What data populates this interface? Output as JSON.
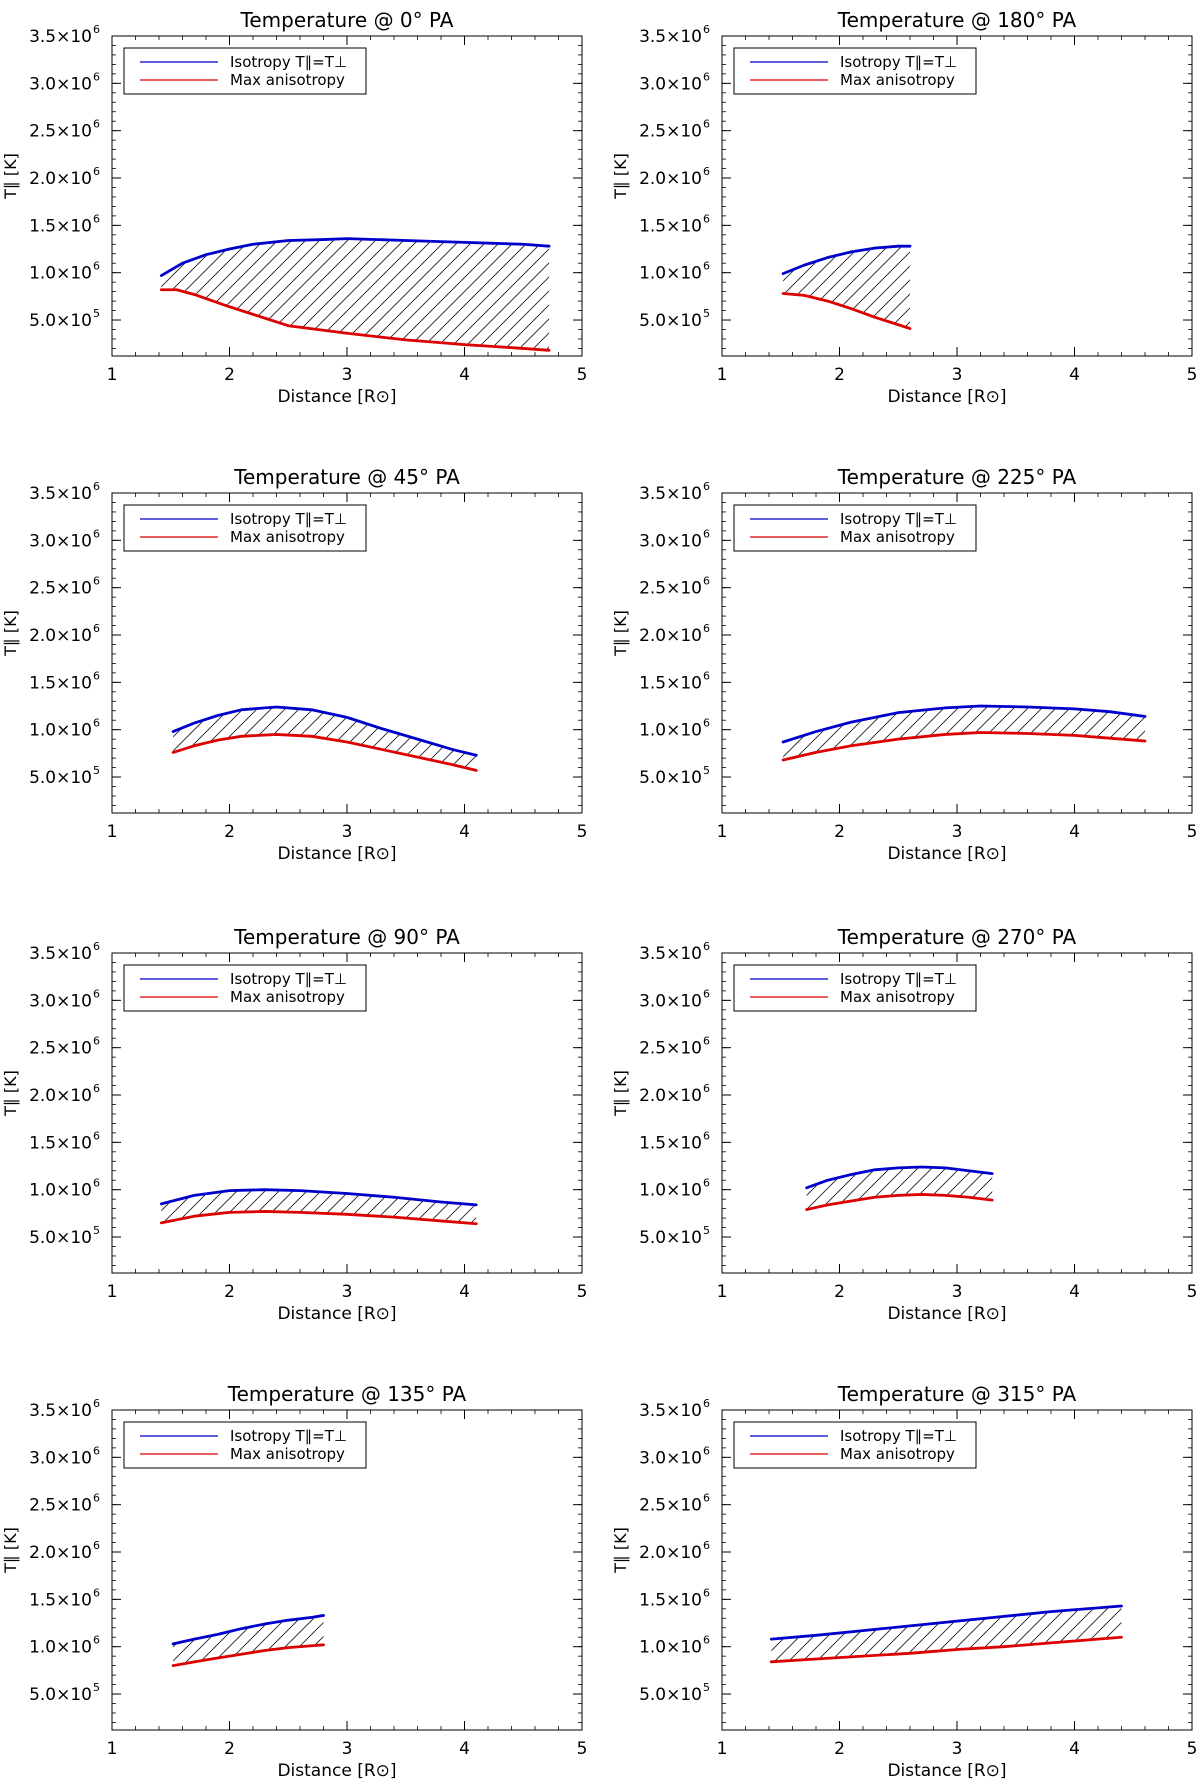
{
  "chart_data": [
    {
      "type": "area",
      "title": "Temperature @ 0° PA",
      "xlabel": "Distance [R⊙]",
      "ylabel": "T∥ [K]",
      "xlim": [
        1,
        5
      ],
      "ylim": [
        120000,
        3500000
      ],
      "xticks": [
        "1",
        "2",
        "3",
        "4",
        "5"
      ],
      "yticks": [
        {
          "value": 500000,
          "mant": "5.0",
          "exp": "5"
        },
        {
          "value": 1000000,
          "mant": "1.0",
          "exp": "6"
        },
        {
          "value": 1500000,
          "mant": "1.5",
          "exp": "6"
        },
        {
          "value": 2000000,
          "mant": "2.0",
          "exp": "6"
        },
        {
          "value": 2500000,
          "mant": "2.5",
          "exp": "6"
        },
        {
          "value": 3000000,
          "mant": "3.0",
          "exp": "6"
        },
        {
          "value": 3500000,
          "mant": "3.5",
          "exp": "6"
        }
      ],
      "legend": {
        "placement": "top-left",
        "entries": [
          "Isotropy T∥=T⊥",
          "Max anisotropy"
        ]
      },
      "series": [
        {
          "name": "Isotropy T∥=T⊥",
          "color": "#0000cc",
          "x": [
            1.42,
            1.6,
            1.8,
            2.0,
            2.2,
            2.5,
            2.8,
            3.0,
            3.5,
            4.0,
            4.5,
            4.72
          ],
          "y": [
            970000,
            1100000,
            1190000,
            1250000,
            1300000,
            1340000,
            1350000,
            1360000,
            1340000,
            1320000,
            1300000,
            1280000
          ]
        },
        {
          "name": "Max anisotropy",
          "color": "#dd0000",
          "x": [
            1.42,
            1.55,
            1.7,
            2.0,
            2.3,
            2.5,
            3.0,
            3.5,
            4.0,
            4.5,
            4.72
          ],
          "y": [
            820000,
            820000,
            770000,
            640000,
            520000,
            440000,
            360000,
            290000,
            240000,
            200000,
            180000
          ]
        }
      ]
    },
    {
      "type": "area",
      "title": "Temperature @ 180° PA",
      "xlabel": "Distance [R⊙]",
      "ylabel": "T∥ [K]",
      "xlim": [
        1,
        5
      ],
      "ylim": [
        120000,
        3500000
      ],
      "xticks": [
        "1",
        "2",
        "3",
        "4",
        "5"
      ],
      "yticks": [
        {
          "value": 500000,
          "mant": "5.0",
          "exp": "5"
        },
        {
          "value": 1000000,
          "mant": "1.0",
          "exp": "6"
        },
        {
          "value": 1500000,
          "mant": "1.5",
          "exp": "6"
        },
        {
          "value": 2000000,
          "mant": "2.0",
          "exp": "6"
        },
        {
          "value": 2500000,
          "mant": "2.5",
          "exp": "6"
        },
        {
          "value": 3000000,
          "mant": "3.0",
          "exp": "6"
        },
        {
          "value": 3500000,
          "mant": "3.5",
          "exp": "6"
        }
      ],
      "legend": {
        "placement": "top-left",
        "entries": [
          "Isotropy T∥=T⊥",
          "Max anisotropy"
        ]
      },
      "series": [
        {
          "name": "Isotropy T∥=T⊥",
          "color": "#0000cc",
          "x": [
            1.52,
            1.7,
            1.9,
            2.1,
            2.3,
            2.5,
            2.6
          ],
          "y": [
            990000,
            1080000,
            1160000,
            1220000,
            1260000,
            1280000,
            1280000
          ]
        },
        {
          "name": "Max anisotropy",
          "color": "#dd0000",
          "x": [
            1.52,
            1.7,
            1.9,
            2.1,
            2.3,
            2.5,
            2.6
          ],
          "y": [
            780000,
            760000,
            700000,
            620000,
            530000,
            450000,
            410000
          ]
        }
      ]
    },
    {
      "type": "area",
      "title": "Temperature @ 45° PA",
      "xlabel": "Distance [R⊙]",
      "ylabel": "T∥ [K]",
      "xlim": [
        1,
        5
      ],
      "ylim": [
        120000,
        3500000
      ],
      "xticks": [
        "1",
        "2",
        "3",
        "4",
        "5"
      ],
      "yticks": [
        {
          "value": 500000,
          "mant": "5.0",
          "exp": "5"
        },
        {
          "value": 1000000,
          "mant": "1.0",
          "exp": "6"
        },
        {
          "value": 1500000,
          "mant": "1.5",
          "exp": "6"
        },
        {
          "value": 2000000,
          "mant": "2.0",
          "exp": "6"
        },
        {
          "value": 2500000,
          "mant": "2.5",
          "exp": "6"
        },
        {
          "value": 3000000,
          "mant": "3.0",
          "exp": "6"
        },
        {
          "value": 3500000,
          "mant": "3.5",
          "exp": "6"
        }
      ],
      "legend": {
        "placement": "top-left",
        "entries": [
          "Isotropy T∥=T⊥",
          "Max anisotropy"
        ]
      },
      "series": [
        {
          "name": "Isotropy T∥=T⊥",
          "color": "#0000cc",
          "x": [
            1.52,
            1.7,
            1.9,
            2.1,
            2.4,
            2.7,
            3.0,
            3.3,
            3.6,
            3.9,
            4.1
          ],
          "y": [
            980000,
            1070000,
            1150000,
            1210000,
            1240000,
            1210000,
            1130000,
            1010000,
            900000,
            790000,
            730000
          ]
        },
        {
          "name": "Max anisotropy",
          "color": "#dd0000",
          "x": [
            1.52,
            1.7,
            1.9,
            2.1,
            2.4,
            2.7,
            3.0,
            3.3,
            3.6,
            3.9,
            4.1
          ],
          "y": [
            760000,
            830000,
            890000,
            930000,
            950000,
            930000,
            870000,
            790000,
            710000,
            630000,
            570000
          ]
        }
      ]
    },
    {
      "type": "area",
      "title": "Temperature @ 225° PA",
      "xlabel": "Distance [R⊙]",
      "ylabel": "T∥ [K]",
      "xlim": [
        1,
        5
      ],
      "ylim": [
        120000,
        3500000
      ],
      "xticks": [
        "1",
        "2",
        "3",
        "4",
        "5"
      ],
      "yticks": [
        {
          "value": 500000,
          "mant": "5.0",
          "exp": "5"
        },
        {
          "value": 1000000,
          "mant": "1.0",
          "exp": "6"
        },
        {
          "value": 1500000,
          "mant": "1.5",
          "exp": "6"
        },
        {
          "value": 2000000,
          "mant": "2.0",
          "exp": "6"
        },
        {
          "value": 2500000,
          "mant": "2.5",
          "exp": "6"
        },
        {
          "value": 3000000,
          "mant": "3.0",
          "exp": "6"
        },
        {
          "value": 3500000,
          "mant": "3.5",
          "exp": "6"
        }
      ],
      "legend": {
        "placement": "top-left",
        "entries": [
          "Isotropy T∥=T⊥",
          "Max anisotropy"
        ]
      },
      "series": [
        {
          "name": "Isotropy T∥=T⊥",
          "color": "#0000cc",
          "x": [
            1.52,
            1.8,
            2.1,
            2.5,
            2.9,
            3.2,
            3.6,
            4.0,
            4.3,
            4.6
          ],
          "y": [
            870000,
            980000,
            1080000,
            1180000,
            1230000,
            1250000,
            1240000,
            1220000,
            1190000,
            1140000
          ]
        },
        {
          "name": "Max anisotropy",
          "color": "#dd0000",
          "x": [
            1.52,
            1.8,
            2.1,
            2.5,
            2.9,
            3.2,
            3.6,
            4.0,
            4.3,
            4.6
          ],
          "y": [
            680000,
            760000,
            830000,
            900000,
            950000,
            970000,
            960000,
            940000,
            910000,
            880000
          ]
        }
      ]
    },
    {
      "type": "area",
      "title": "Temperature @ 90° PA",
      "xlabel": "Distance [R⊙]",
      "ylabel": "T∥ [K]",
      "xlim": [
        1,
        5
      ],
      "ylim": [
        120000,
        3500000
      ],
      "xticks": [
        "1",
        "2",
        "3",
        "4",
        "5"
      ],
      "yticks": [
        {
          "value": 500000,
          "mant": "5.0",
          "exp": "5"
        },
        {
          "value": 1000000,
          "mant": "1.0",
          "exp": "6"
        },
        {
          "value": 1500000,
          "mant": "1.5",
          "exp": "6"
        },
        {
          "value": 2000000,
          "mant": "2.0",
          "exp": "6"
        },
        {
          "value": 2500000,
          "mant": "2.5",
          "exp": "6"
        },
        {
          "value": 3000000,
          "mant": "3.0",
          "exp": "6"
        },
        {
          "value": 3500000,
          "mant": "3.5",
          "exp": "6"
        }
      ],
      "legend": {
        "placement": "top-left",
        "entries": [
          "Isotropy T∥=T⊥",
          "Max anisotropy"
        ]
      },
      "series": [
        {
          "name": "Isotropy T∥=T⊥",
          "color": "#0000cc",
          "x": [
            1.42,
            1.7,
            2.0,
            2.3,
            2.6,
            3.0,
            3.4,
            3.8,
            4.1
          ],
          "y": [
            850000,
            940000,
            990000,
            1000000,
            990000,
            960000,
            920000,
            870000,
            840000
          ]
        },
        {
          "name": "Max anisotropy",
          "color": "#dd0000",
          "x": [
            1.42,
            1.7,
            2.0,
            2.3,
            2.6,
            3.0,
            3.4,
            3.8,
            4.1
          ],
          "y": [
            650000,
            720000,
            760000,
            770000,
            760000,
            740000,
            710000,
            670000,
            640000
          ]
        }
      ]
    },
    {
      "type": "area",
      "title": "Temperature @ 270° PA",
      "xlabel": "Distance [R⊙]",
      "ylabel": "T∥ [K]",
      "xlim": [
        1,
        5
      ],
      "ylim": [
        120000,
        3500000
      ],
      "xticks": [
        "1",
        "2",
        "3",
        "4",
        "5"
      ],
      "yticks": [
        {
          "value": 500000,
          "mant": "5.0",
          "exp": "5"
        },
        {
          "value": 1000000,
          "mant": "1.0",
          "exp": "6"
        },
        {
          "value": 1500000,
          "mant": "1.5",
          "exp": "6"
        },
        {
          "value": 2000000,
          "mant": "2.0",
          "exp": "6"
        },
        {
          "value": 2500000,
          "mant": "2.5",
          "exp": "6"
        },
        {
          "value": 3000000,
          "mant": "3.0",
          "exp": "6"
        },
        {
          "value": 3500000,
          "mant": "3.5",
          "exp": "6"
        }
      ],
      "legend": {
        "placement": "top-left",
        "entries": [
          "Isotropy T∥=T⊥",
          "Max anisotropy"
        ]
      },
      "series": [
        {
          "name": "Isotropy T∥=T⊥",
          "color": "#0000cc",
          "x": [
            1.72,
            1.9,
            2.1,
            2.3,
            2.5,
            2.7,
            2.9,
            3.1,
            3.3
          ],
          "y": [
            1020000,
            1100000,
            1160000,
            1210000,
            1230000,
            1240000,
            1230000,
            1200000,
            1170000
          ]
        },
        {
          "name": "Max anisotropy",
          "color": "#dd0000",
          "x": [
            1.72,
            1.9,
            2.1,
            2.3,
            2.5,
            2.7,
            2.9,
            3.1,
            3.3
          ],
          "y": [
            790000,
            840000,
            880000,
            920000,
            940000,
            950000,
            940000,
            920000,
            890000
          ]
        }
      ]
    },
    {
      "type": "area",
      "title": "Temperature @ 135° PA",
      "xlabel": "Distance [R⊙]",
      "ylabel": "T∥ [K]",
      "xlim": [
        1,
        5
      ],
      "ylim": [
        120000,
        3500000
      ],
      "xticks": [
        "1",
        "2",
        "3",
        "4",
        "5"
      ],
      "yticks": [
        {
          "value": 500000,
          "mant": "5.0",
          "exp": "5"
        },
        {
          "value": 1000000,
          "mant": "1.0",
          "exp": "6"
        },
        {
          "value": 1500000,
          "mant": "1.5",
          "exp": "6"
        },
        {
          "value": 2000000,
          "mant": "2.0",
          "exp": "6"
        },
        {
          "value": 2500000,
          "mant": "2.5",
          "exp": "6"
        },
        {
          "value": 3000000,
          "mant": "3.0",
          "exp": "6"
        },
        {
          "value": 3500000,
          "mant": "3.5",
          "exp": "6"
        }
      ],
      "legend": {
        "placement": "top-left",
        "entries": [
          "Isotropy T∥=T⊥",
          "Max anisotropy"
        ]
      },
      "series": [
        {
          "name": "Isotropy T∥=T⊥",
          "color": "#0000cc",
          "x": [
            1.52,
            1.7,
            1.9,
            2.1,
            2.3,
            2.5,
            2.7,
            2.8
          ],
          "y": [
            1030000,
            1080000,
            1130000,
            1190000,
            1240000,
            1280000,
            1310000,
            1330000
          ]
        },
        {
          "name": "Max anisotropy",
          "color": "#dd0000",
          "x": [
            1.52,
            1.7,
            1.9,
            2.1,
            2.3,
            2.5,
            2.7,
            2.8
          ],
          "y": [
            800000,
            840000,
            880000,
            920000,
            960000,
            990000,
            1010000,
            1020000
          ]
        }
      ]
    },
    {
      "type": "area",
      "title": "Temperature @ 315° PA",
      "xlabel": "Distance [R⊙]",
      "ylabel": "T∥ [K]",
      "xlim": [
        1,
        5
      ],
      "ylim": [
        120000,
        3500000
      ],
      "xticks": [
        "1",
        "2",
        "3",
        "4",
        "5"
      ],
      "yticks": [
        {
          "value": 500000,
          "mant": "5.0",
          "exp": "5"
        },
        {
          "value": 1000000,
          "mant": "1.0",
          "exp": "6"
        },
        {
          "value": 1500000,
          "mant": "1.5",
          "exp": "6"
        },
        {
          "value": 2000000,
          "mant": "2.0",
          "exp": "6"
        },
        {
          "value": 2500000,
          "mant": "2.5",
          "exp": "6"
        },
        {
          "value": 3000000,
          "mant": "3.0",
          "exp": "6"
        },
        {
          "value": 3500000,
          "mant": "3.5",
          "exp": "6"
        }
      ],
      "legend": {
        "placement": "top-left",
        "entries": [
          "Isotropy T∥=T⊥",
          "Max anisotropy"
        ]
      },
      "series": [
        {
          "name": "Isotropy T∥=T⊥",
          "color": "#0000cc",
          "x": [
            1.42,
            1.8,
            2.2,
            2.6,
            3.0,
            3.4,
            3.8,
            4.2,
            4.4
          ],
          "y": [
            1080000,
            1120000,
            1170000,
            1220000,
            1270000,
            1320000,
            1370000,
            1410000,
            1430000
          ]
        },
        {
          "name": "Max anisotropy",
          "color": "#dd0000",
          "x": [
            1.42,
            1.8,
            2.2,
            2.6,
            3.0,
            3.4,
            3.8,
            4.2,
            4.4
          ],
          "y": [
            840000,
            870000,
            900000,
            930000,
            970000,
            1000000,
            1040000,
            1080000,
            1100000
          ]
        }
      ]
    }
  ]
}
